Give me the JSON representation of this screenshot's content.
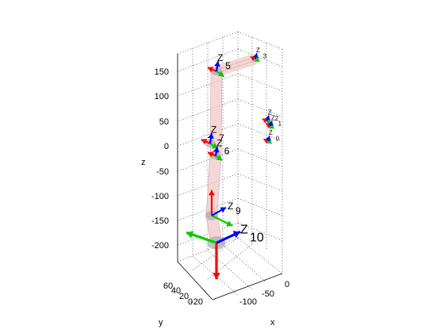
{
  "chart_data": {
    "type": "scatter",
    "title": "",
    "axes": {
      "x": {
        "label": "x",
        "ticks": [
          "0",
          "-50",
          "-100"
        ],
        "range": [
          -130,
          10
        ]
      },
      "y": {
        "label": "y",
        "ticks": [
          "60",
          "40",
          "20",
          "0",
          "-20"
        ],
        "range": [
          -25,
          65
        ]
      },
      "z": {
        "label": "z",
        "ticks": [
          "150",
          "100",
          "50",
          "0",
          "-50",
          "-100",
          "-150",
          "-200"
        ],
        "range": [
          -230,
          185
        ]
      }
    },
    "grid": true,
    "frames": [
      {
        "label": "10",
        "z": -195
      },
      {
        "label": "9",
        "z": -140
      },
      {
        "label": "7",
        "z": 5
      },
      {
        "label": "6",
        "z": -20
      },
      {
        "label": "5",
        "z": 150
      },
      {
        "label": "3",
        "z": 175
      },
      {
        "label": "2",
        "z": 50
      },
      {
        "label": "1",
        "z": 40
      },
      {
        "label": "0",
        "z": 10
      }
    ],
    "links": [
      {
        "from": "5",
        "to": "3"
      },
      {
        "from": "5",
        "to": "6"
      },
      {
        "from": "6",
        "to": "9"
      },
      {
        "from": "9",
        "to": "10"
      }
    ],
    "colors": {
      "x_axis": "#ff0000",
      "y_axis": "#00cc00",
      "z_axis": "#0000ff",
      "link": "#f2c8c8"
    }
  }
}
